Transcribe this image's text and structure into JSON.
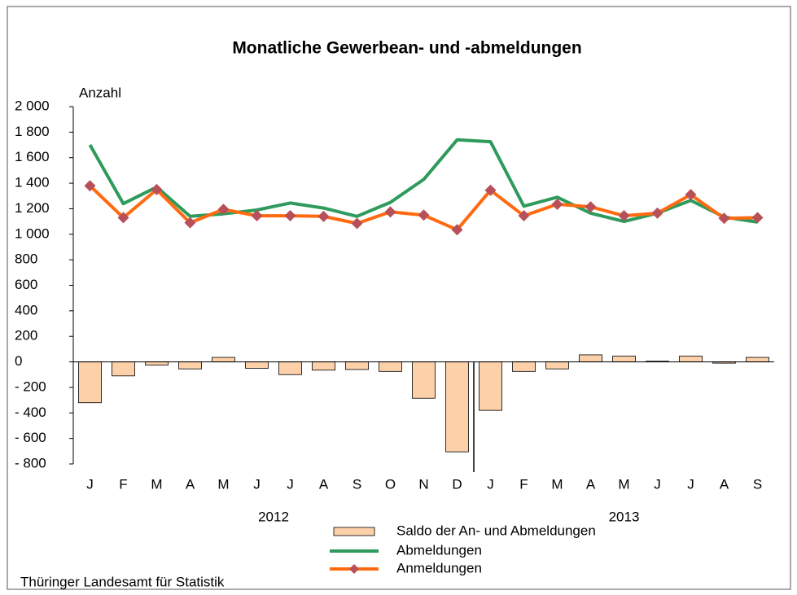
{
  "chart_data": {
    "type": "bar_line",
    "title": "Monatliche Gewerbean- und -abmeldungen",
    "y_label": "Anzahl",
    "categories": [
      "J",
      "F",
      "M",
      "A",
      "M",
      "J",
      "J",
      "A",
      "S",
      "O",
      "N",
      "D",
      "J",
      "F",
      "M",
      "A",
      "M",
      "J",
      "J",
      "A",
      "S"
    ],
    "year_labels": [
      "2012",
      "2013"
    ],
    "series": [
      {
        "name": "Saldo der An- und Abmeldungen",
        "kind": "bar",
        "color": "#fcd0a8",
        "values": [
          -320,
          -110,
          -25,
          -55,
          35,
          -50,
          -100,
          -65,
          -60,
          -75,
          -285,
          -705,
          -380,
          -75,
          -55,
          55,
          45,
          5,
          45,
          -10,
          35
        ]
      },
      {
        "name": "Abmeldungen",
        "kind": "line",
        "color": "#2e9a5c",
        "values": [
          1700,
          1240,
          1370,
          1140,
          1160,
          1190,
          1245,
          1205,
          1140,
          1250,
          1430,
          1740,
          1725,
          1220,
          1290,
          1165,
          1100,
          1165,
          1265,
          1135,
          1095
        ]
      },
      {
        "name": "Anmeldungen",
        "kind": "line_marker",
        "color": "#ff6a10",
        "marker_color": "#b8505a",
        "values": [
          1380,
          1130,
          1350,
          1090,
          1195,
          1145,
          1145,
          1140,
          1085,
          1175,
          1150,
          1035,
          1345,
          1145,
          1235,
          1215,
          1145,
          1165,
          1310,
          1125,
          1130
        ]
      }
    ],
    "ylim": [
      -800,
      2000
    ],
    "yticks": [
      {
        "value": -800,
        "label": "- 800"
      },
      {
        "value": -600,
        "label": "- 600"
      },
      {
        "value": -400,
        "label": "- 400"
      },
      {
        "value": -200,
        "label": "- 200"
      },
      0,
      200,
      400,
      600,
      800,
      {
        "value": 1000,
        "label": "1 000"
      },
      {
        "value": 1200,
        "label": "1 200"
      },
      {
        "value": 1400,
        "label": "1 400"
      },
      {
        "value": 1600,
        "label": "1 600"
      },
      {
        "value": 1800,
        "label": "1 800"
      },
      {
        "value": 2000,
        "label": "2 000"
      }
    ],
    "source": "Thüringer Landesamt für Statistik"
  }
}
